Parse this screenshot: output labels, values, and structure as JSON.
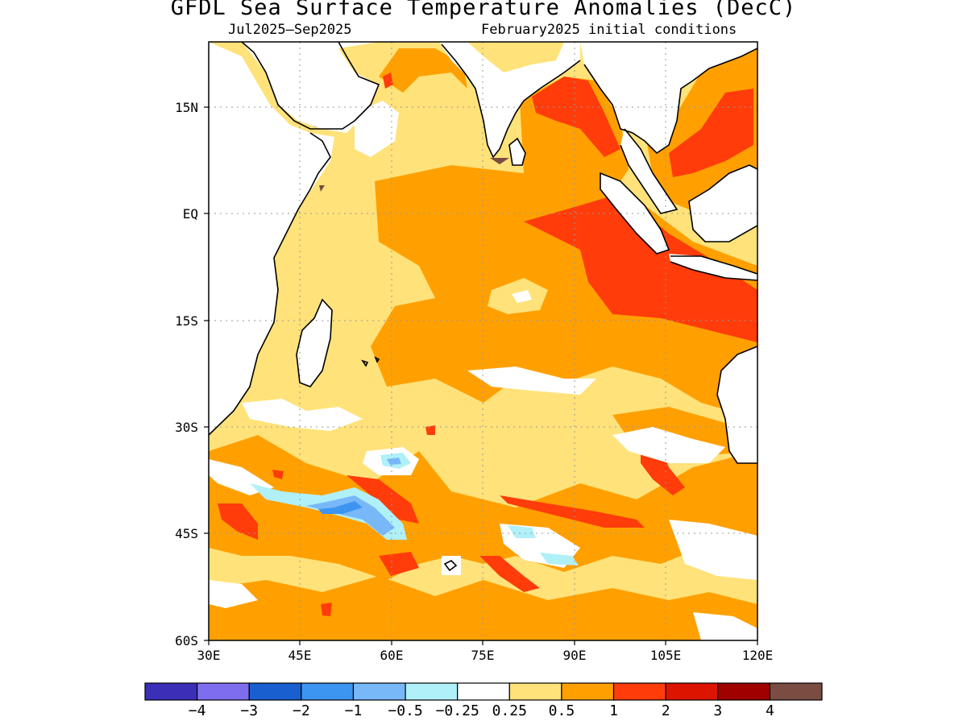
{
  "title": "GFDL Sea Surface Temperature Anomalies (DecC)",
  "subtitle_left": "Jul2025–Sep2025",
  "subtitle_right": "February2025 initial conditions",
  "map": {
    "lon_range": [
      30,
      120
    ],
    "lat_range": [
      -60,
      24
    ],
    "x_ticks": [
      "30E",
      "45E",
      "60E",
      "75E",
      "90E",
      "105E",
      "120E"
    ],
    "y_ticks": [
      "15N",
      "EQ",
      "15S",
      "30S",
      "45S",
      "60S"
    ],
    "grid": true
  },
  "colorbar": {
    "labels": [
      "−4",
      "−3",
      "−2",
      "−1",
      "−0.5",
      "−0.25",
      "0.25",
      "0.5",
      "1",
      "2",
      "3",
      "4"
    ],
    "colors": [
      "#3b2fb8",
      "#7f6df0",
      "#1a5fd0",
      "#3c95f0",
      "#78b8f8",
      "#b0f0f8",
      "#ffffff",
      "#ffe27a",
      "#ffa000",
      "#ff3c0a",
      "#dc1400",
      "#a00000",
      "#7a4c42"
    ]
  },
  "colors": {
    "land": "#ffffff",
    "coast": "#000000",
    "weak_pos": "#ffe27a",
    "mod_pos": "#ffa000",
    "strong_pos": "#ff3c0a",
    "weak_neg": "#b0f0f8",
    "mod_neg": "#78b8f8",
    "neg": "#3c95f0"
  }
}
